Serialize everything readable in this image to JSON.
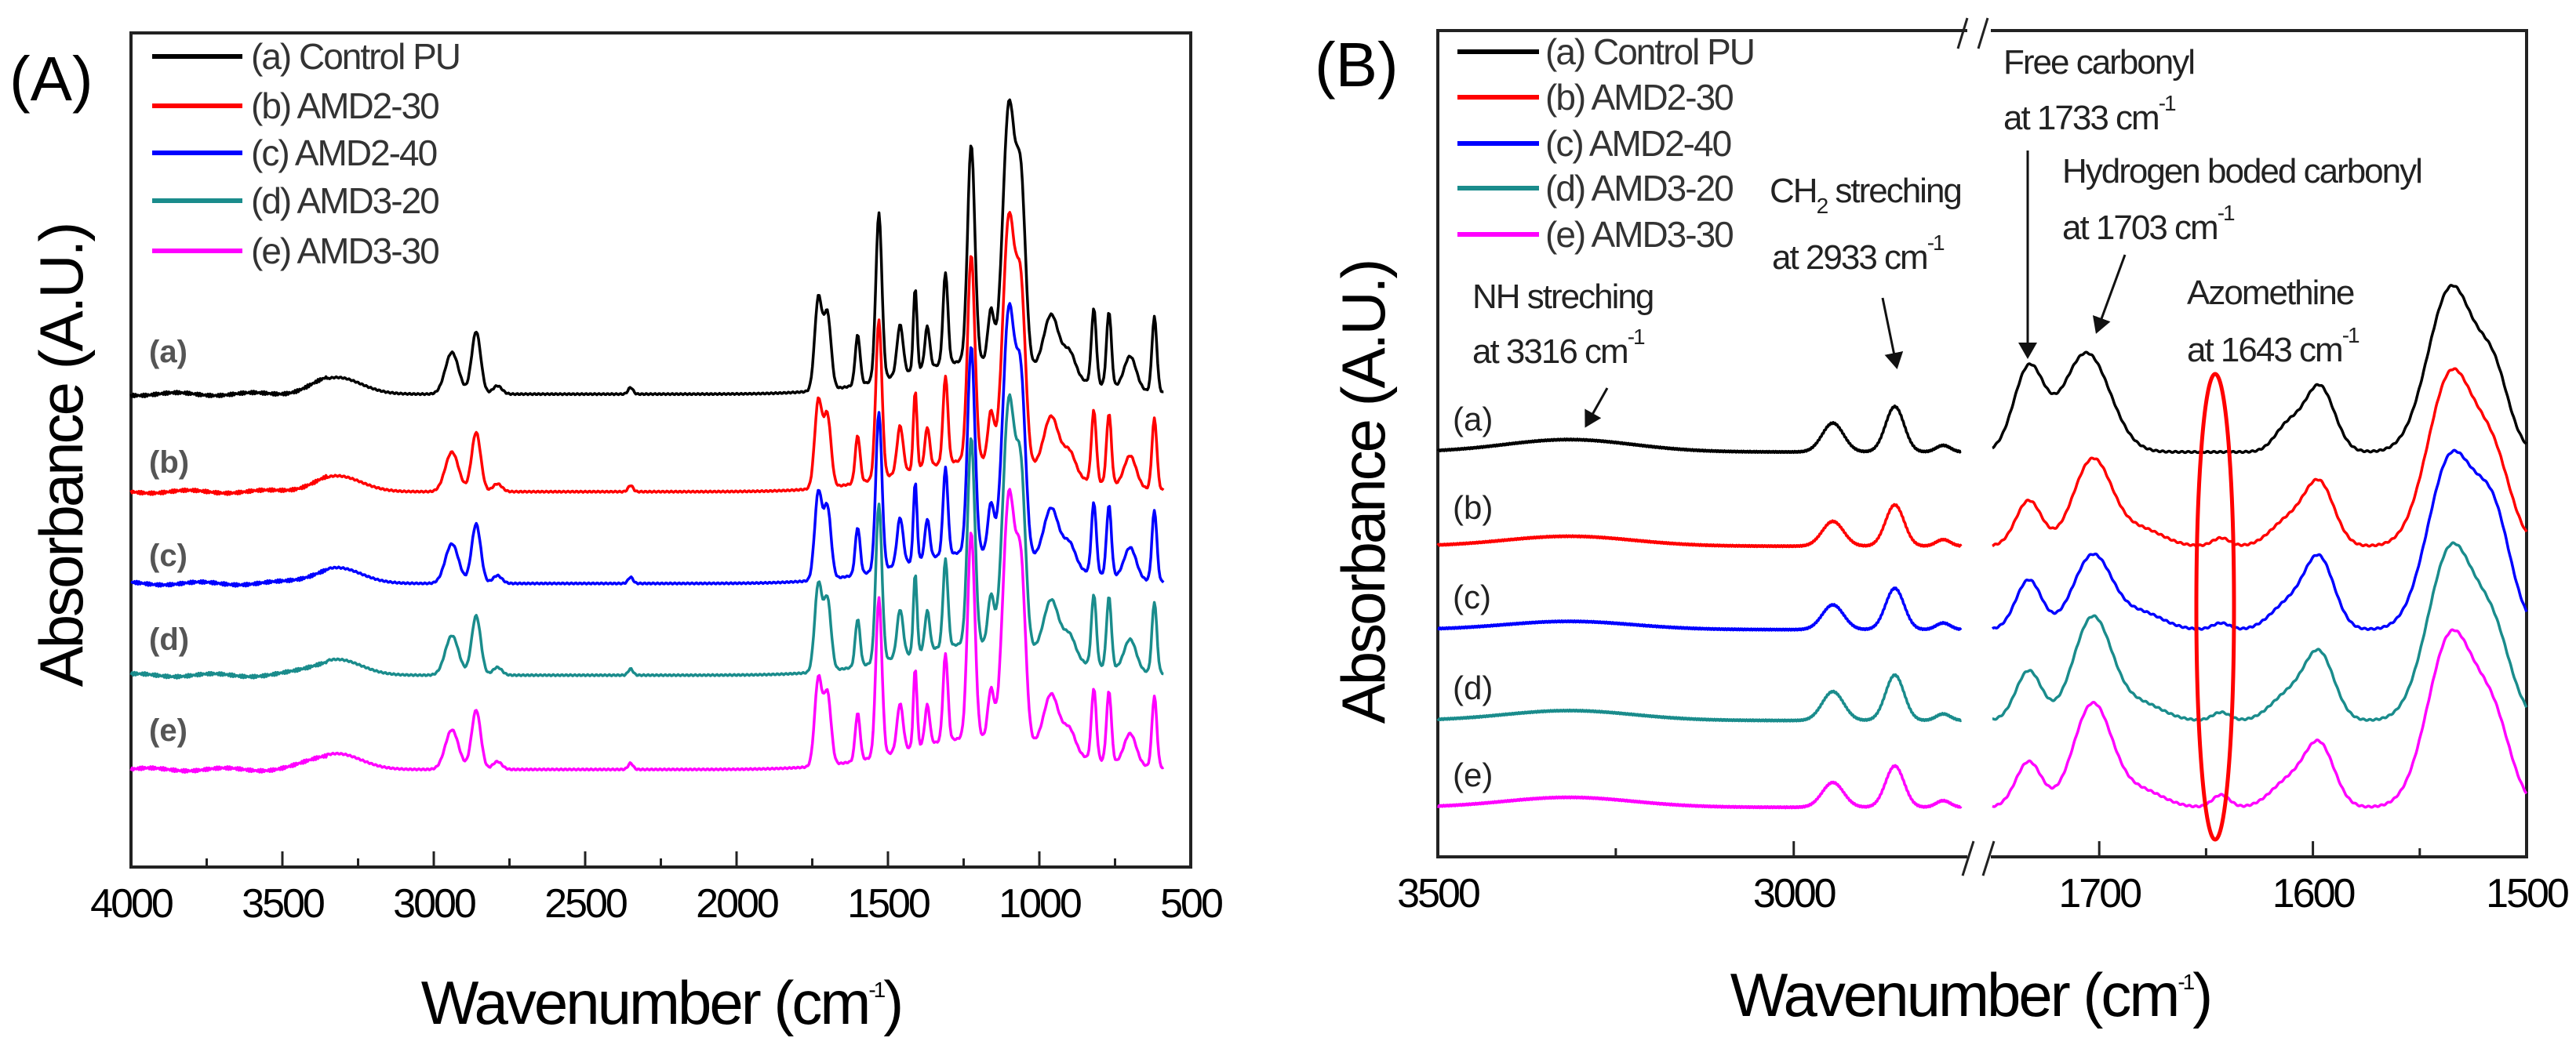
{
  "chart_data": [
    {
      "type": "line",
      "panel_label": "(A)",
      "xlabel": "Wavenumber (cm",
      "xlabel_sup": "-1",
      "xlabel_end": ")",
      "ylabel": "Absorbance (A.U.)",
      "xlim": [
        4000,
        500
      ],
      "ylim": [
        0,
        10
      ],
      "x_segments": [
        [
          4000,
          500
        ]
      ],
      "data_range": [
        4000,
        590
      ],
      "xticks": [
        4000,
        3500,
        3000,
        2500,
        2000,
        1500,
        1000,
        500
      ],
      "xticks_minor": [
        3750,
        3250,
        2750,
        2250,
        1750,
        1250,
        750
      ],
      "legend_position": "top-left",
      "legend": [
        "(a) Control PU",
        "(b) AMD2-30",
        "(c) AMD2-40",
        "(d) AMD3-20",
        "(e) AMD3-30"
      ],
      "peaks": [
        [
          3320,
          0.2,
          80
        ],
        [
          2940,
          0.5,
          22
        ],
        [
          2860,
          0.75,
          15
        ],
        [
          2790,
          0.1,
          15
        ],
        [
          2350,
          0.08,
          8
        ],
        [
          1730,
          1.1,
          12
        ],
        [
          1700,
          0.9,
          12
        ],
        [
          1600,
          0.6,
          8
        ],
        [
          1530,
          2.0,
          10
        ],
        [
          1460,
          0.6,
          10
        ],
        [
          1410,
          1.0,
          6
        ],
        [
          1370,
          0.5,
          8
        ],
        [
          1310,
          1.1,
          8
        ],
        [
          1225,
          2.6,
          12
        ],
        [
          1160,
          0.6,
          10
        ],
        [
          1100,
          3.1,
          20
        ],
        [
          1060,
          2.0,
          15
        ],
        [
          960,
          0.7,
          25
        ],
        [
          900,
          0.3,
          20
        ],
        [
          820,
          0.9,
          8
        ],
        [
          770,
          0.9,
          8
        ],
        [
          700,
          0.4,
          20
        ],
        [
          620,
          0.9,
          8
        ],
        [
          1200,
          0.4,
          250
        ]
      ],
      "series": [
        {
          "name": "(a) Control PU",
          "label": "(a)",
          "color": "#000000",
          "offset": 5.67,
          "scale": 1.0
        },
        {
          "name": "(b) AMD2-30",
          "label": "(b)",
          "color": "#ff0000",
          "offset": 4.5,
          "scale": 0.95
        },
        {
          "name": "(c) AMD2-40",
          "label": "(c)",
          "color": "#0000ff",
          "offset": 3.4,
          "scale": 0.95
        },
        {
          "name": "(d) AMD3-20",
          "label": "(d)",
          "color": "#1a8c8c",
          "offset": 2.3,
          "scale": 0.95
        },
        {
          "name": "(e) AMD3-30",
          "label": "(e)",
          "color": "#ff00ff",
          "offset": 1.17,
          "scale": 0.95
        }
      ]
    },
    {
      "type": "line",
      "panel_label": "(B)",
      "xlabel": "Wavenumber (cm",
      "xlabel_sup": "-1",
      "xlabel_end": ")",
      "ylabel": "Absorbance (A.U.)",
      "xlim": [
        3500,
        1500
      ],
      "ylim": [
        0,
        10
      ],
      "x_segments": [
        [
          3500,
          2765
        ],
        [
          1750,
          1500
        ]
      ],
      "axis_break": true,
      "xticks": [
        3500,
        3000,
        1700,
        1600,
        1500
      ],
      "xticks_minor": [
        3250,
        1650,
        1550
      ],
      "legend_position": "top-left",
      "legend": [
        "(a) Control PU",
        "(b) AMD2-30",
        "(c) AMD2-40",
        "(d) AMD3-20",
        "(e) AMD3-30"
      ],
      "annotations": [
        {
          "line1": "Free carbonyl",
          "line2": "at 1733 cm",
          "sup": "-1",
          "target": 1733
        },
        {
          "line1": "Hydrogen boded carbonyl",
          "line2": "at 1703 cm",
          "sup": "-1",
          "target": 1703
        },
        {
          "line1": "CH",
          "line1_sub": "2",
          "line1_end": " streching",
          "line2": "at 2933 cm",
          "sup": "-1",
          "target": 2933
        },
        {
          "line1": "NH streching",
          "line2": "at 3316 cm",
          "sup": "-1",
          "target": 3316
        },
        {
          "line1": "Azomethine",
          "line2": "at 1643 cm",
          "sup": "-1",
          "target": 1643,
          "highlight_color": "#ff0000"
        }
      ],
      "series": [
        {
          "name": "(a) Control PU",
          "label": "(a)",
          "color": "#000000",
          "offset": 4.9,
          "peaks": [
            [
              3316,
              0.15,
              90
            ],
            [
              2945,
              0.35,
              15
            ],
            [
              2858,
              0.55,
              13
            ],
            [
              2790,
              0.08,
              10
            ],
            [
              1733,
              1.0,
              7
            ],
            [
              1706,
              1.2,
              11
            ],
            [
              1612,
              0.3,
              6
            ],
            [
              1597,
              0.8,
              7
            ],
            [
              1535,
              2.0,
              11
            ],
            [
              1515,
              0.8,
              7
            ]
          ]
        },
        {
          "name": "(b) AMD2-30",
          "label": "(b)",
          "color": "#ff0000",
          "offset": 3.76,
          "peaks": [
            [
              3316,
              0.12,
              90
            ],
            [
              2945,
              0.3,
              15
            ],
            [
              2858,
              0.5,
              13
            ],
            [
              2790,
              0.08,
              10
            ],
            [
              1733,
              0.55,
              6
            ],
            [
              1703,
              1.05,
              9
            ],
            [
              1680,
              0.2,
              10
            ],
            [
              1643,
              0.1,
              4
            ],
            [
              1612,
              0.3,
              8
            ],
            [
              1597,
              0.75,
              7
            ],
            [
              1535,
              2.1,
              11
            ],
            [
              1515,
              0.9,
              8
            ]
          ]
        },
        {
          "name": "(c) AMD2-40",
          "label": "(c)",
          "color": "#0000ff",
          "offset": 2.75,
          "peaks": [
            [
              3316,
              0.1,
              90
            ],
            [
              2945,
              0.3,
              15
            ],
            [
              2858,
              0.5,
              13
            ],
            [
              2790,
              0.08,
              10
            ],
            [
              1733,
              0.6,
              6
            ],
            [
              1703,
              0.9,
              9
            ],
            [
              1680,
              0.2,
              10
            ],
            [
              1643,
              0.08,
              4
            ],
            [
              1612,
              0.3,
              8
            ],
            [
              1597,
              0.85,
              7
            ],
            [
              1535,
              2.1,
              11
            ],
            [
              1515,
              1.2,
              8
            ]
          ]
        },
        {
          "name": "(d) AMD3-20",
          "label": "(d)",
          "color": "#1a8c8c",
          "offset": 1.65,
          "peaks": [
            [
              3316,
              0.12,
              90
            ],
            [
              2945,
              0.35,
              15
            ],
            [
              2858,
              0.55,
              13
            ],
            [
              2790,
              0.08,
              10
            ],
            [
              1733,
              0.6,
              6
            ],
            [
              1703,
              1.25,
              9
            ],
            [
              1680,
              0.2,
              10
            ],
            [
              1643,
              0.1,
              4
            ],
            [
              1612,
              0.3,
              8
            ],
            [
              1597,
              0.8,
              7
            ],
            [
              1535,
              2.1,
              11
            ],
            [
              1515,
              0.9,
              8
            ]
          ]
        },
        {
          "name": "(e) AMD3-30",
          "label": "(e)",
          "color": "#ff00ff",
          "offset": 0.6,
          "peaks": [
            [
              3316,
              0.12,
              90
            ],
            [
              2945,
              0.3,
              15
            ],
            [
              2858,
              0.5,
              13
            ],
            [
              2790,
              0.08,
              10
            ],
            [
              1733,
              0.55,
              6
            ],
            [
              1703,
              1.25,
              9
            ],
            [
              1680,
              0.2,
              10
            ],
            [
              1643,
              0.15,
              4
            ],
            [
              1612,
              0.3,
              8
            ],
            [
              1597,
              0.75,
              7
            ],
            [
              1535,
              2.1,
              11
            ],
            [
              1515,
              0.9,
              8
            ]
          ]
        }
      ]
    }
  ]
}
